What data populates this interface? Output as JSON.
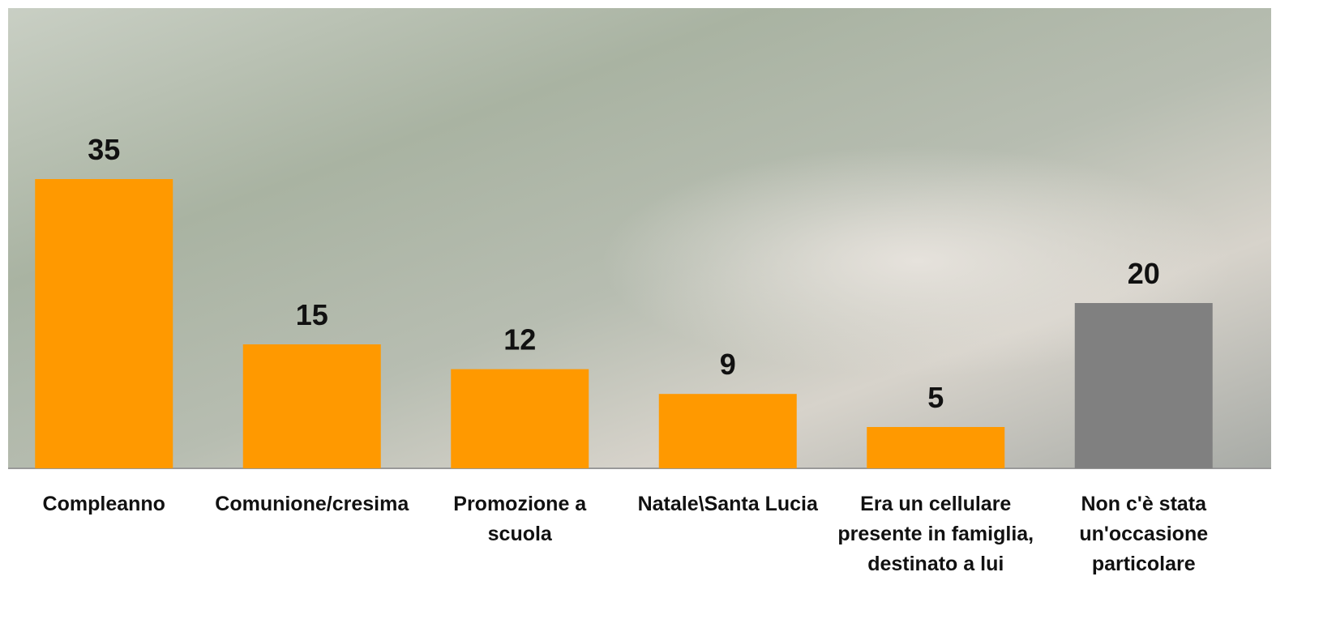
{
  "chart_data": {
    "type": "bar",
    "categories": [
      "Compleanno",
      "Comunione/cresima",
      "Promozione a scuola",
      "Natale\\Santa Lucia",
      "Era un cellulare presente in famiglia, destinato a lui",
      "Non c'è stata un'occasione particolare"
    ],
    "values": [
      35,
      15,
      12,
      9,
      5,
      20
    ],
    "colors": [
      "#ff9900",
      "#ff9900",
      "#ff9900",
      "#ff9900",
      "#ff9900",
      "#808080"
    ]
  }
}
